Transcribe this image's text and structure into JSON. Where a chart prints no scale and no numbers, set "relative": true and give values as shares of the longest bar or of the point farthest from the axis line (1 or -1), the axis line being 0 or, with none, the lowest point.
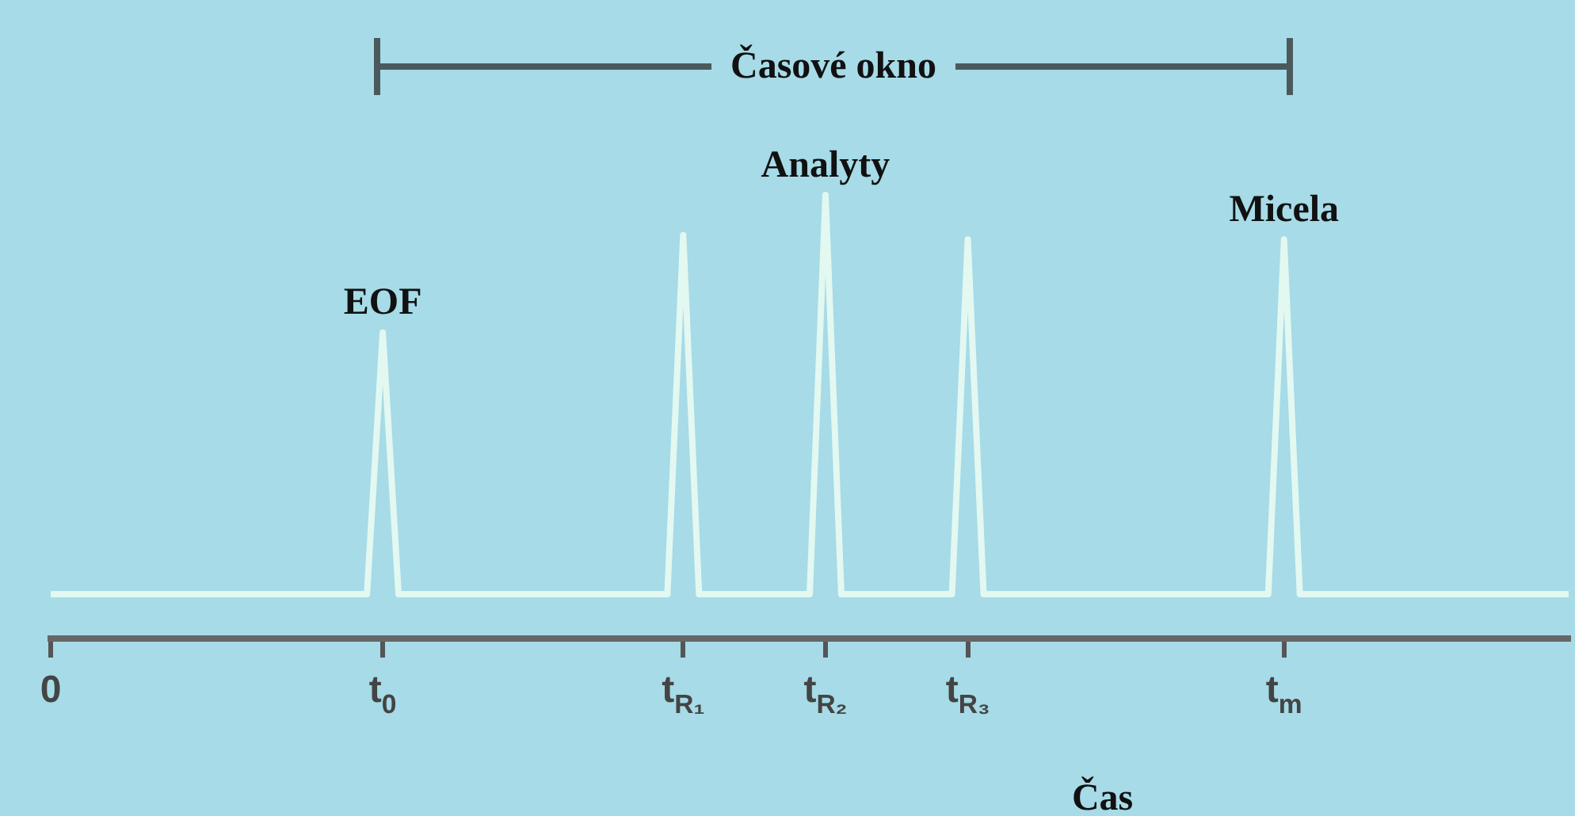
{
  "chart_data": {
    "type": "line",
    "relative": true,
    "xlabel": "Čas",
    "categories": [
      "0",
      null,
      null,
      null,
      null,
      null,
      null,
      null,
      null,
      null,
      null,
      null,
      null,
      null,
      null,
      null,
      null,
      null,
      null,
      null,
      null,
      "t$_{0}$",
      null,
      null,
      null,
      null,
      null,
      null,
      null,
      null,
      null,
      null,
      null,
      null,
      null,
      null,
      null,
      null,
      null,
      null,
      "t$_{R₁}$",
      null,
      null,
      null,
      null,
      null,
      null,
      null,
      null,
      "t$_{R₂}$",
      null,
      null,
      null,
      null,
      null,
      null,
      null,
      null,
      "t$_{R₃}$",
      null,
      null,
      null,
      null,
      null,
      null,
      null,
      null,
      null,
      null,
      null,
      null,
      null,
      null,
      null,
      null,
      null,
      null,
      null,
      "t$_{m}$",
      null,
      null,
      null,
      null,
      null,
      null,
      null,
      null,
      null,
      null,
      null,
      null,
      null,
      null,
      null,
      null,
      null,
      null
    ],
    "series": [
      {
        "color": "#e2f8f1",
        "values": [
          0.1,
          0.1,
          0.1,
          0.1,
          0.1,
          0.1,
          0.1,
          0.1,
          0.1,
          0.1,
          0.1,
          0.1,
          0.1,
          0.1,
          0.1,
          0.1,
          0.1,
          0.1,
          0.1,
          0.1,
          0.1,
          0.69,
          0.1,
          0.1,
          0.1,
          0.1,
          0.1,
          0.1,
          0.1,
          0.1,
          0.1,
          0.1,
          0.1,
          0.1,
          0.1,
          0.1,
          0.1,
          0.1,
          0.1,
          0.1,
          0.91,
          0.1,
          0.1,
          0.1,
          0.1,
          0.1,
          0.1,
          0.1,
          0.1,
          1,
          0.1,
          0.1,
          0.1,
          0.1,
          0.1,
          0.1,
          0.1,
          0.1,
          0.9,
          0.1,
          0.1,
          0.1,
          0.1,
          0.1,
          0.1,
          0.1,
          0.1,
          0.1,
          0.1,
          0.1,
          0.1,
          0.1,
          0.1,
          0.1,
          0.1,
          0.1,
          0.1,
          0.1,
          0.9,
          0.1,
          0.1,
          0.1,
          0.1,
          0.1,
          0.1,
          0.1,
          0.1,
          0.1,
          0.1,
          0.1,
          0.1,
          0.1,
          0.1,
          0.1,
          0.1,
          0.1,
          0.1
        ]
      }
    ],
    "annotations": [
      "Časové okno",
      {
        "text": "EOF",
        "x": "t$_{0}$",
        "y": 0.69
      },
      {
        "text": "Analyty",
        "x": "t$_{R₂}$",
        "y": 1
      },
      {
        "text": "Micela",
        "x": "t$_{m}$",
        "y": 0.9
      }
    ],
    "grid": false,
    "legend": false,
    "marker": "none",
    "line_style": "solid"
  }
}
